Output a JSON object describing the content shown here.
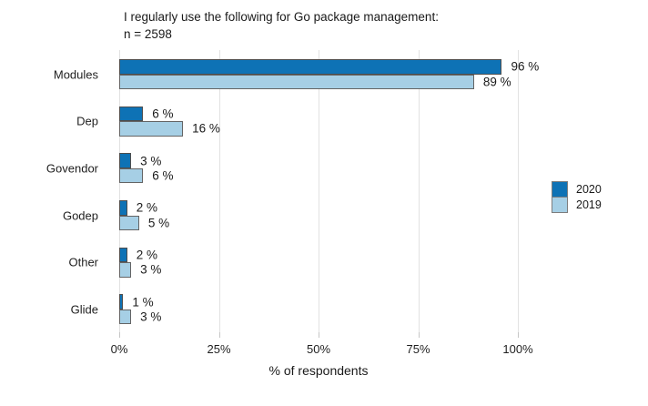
{
  "title": {
    "line1": "I regularly use the following for Go package management:",
    "line2": "n = 2598"
  },
  "legend": {
    "items": [
      {
        "label": "2020",
        "color": "#0e72b5"
      },
      {
        "label": "2019",
        "color": "#a6cfe5"
      }
    ]
  },
  "chart_data": {
    "type": "bar",
    "orientation": "horizontal",
    "title": "I regularly use the following for Go package management: n = 2598",
    "categories": [
      "Modules",
      "Dep",
      "Govendor",
      "Godep",
      "Other",
      "Glide"
    ],
    "series": [
      {
        "name": "2020",
        "color": "#0e72b5",
        "values": [
          96,
          6,
          3,
          2,
          2,
          1
        ],
        "value_labels": [
          "96 %",
          "6 %",
          "3 %",
          "2 %",
          "2 %",
          "1 %"
        ]
      },
      {
        "name": "2019",
        "color": "#a6cfe5",
        "values": [
          89,
          16,
          6,
          5,
          3,
          3
        ],
        "value_labels": [
          "89 %",
          "16 %",
          "6 %",
          "5 %",
          "3 %",
          "3 %"
        ]
      }
    ],
    "xlabel": "% of respondents",
    "x_ticks": [
      "0%",
      "25%",
      "50%",
      "75%",
      "100%"
    ],
    "x_tick_values": [
      0,
      25,
      50,
      75,
      100
    ],
    "xlim": [
      0,
      100
    ],
    "grid": true,
    "legend_position": "right"
  },
  "colors": {
    "bar_border_dark": "#4d4d4d",
    "bar_border_light": "#646464",
    "gridline": "#e2e2e2",
    "tick": "#c6c6c6",
    "text": "#1a1a1a",
    "background": "#ffffff"
  }
}
